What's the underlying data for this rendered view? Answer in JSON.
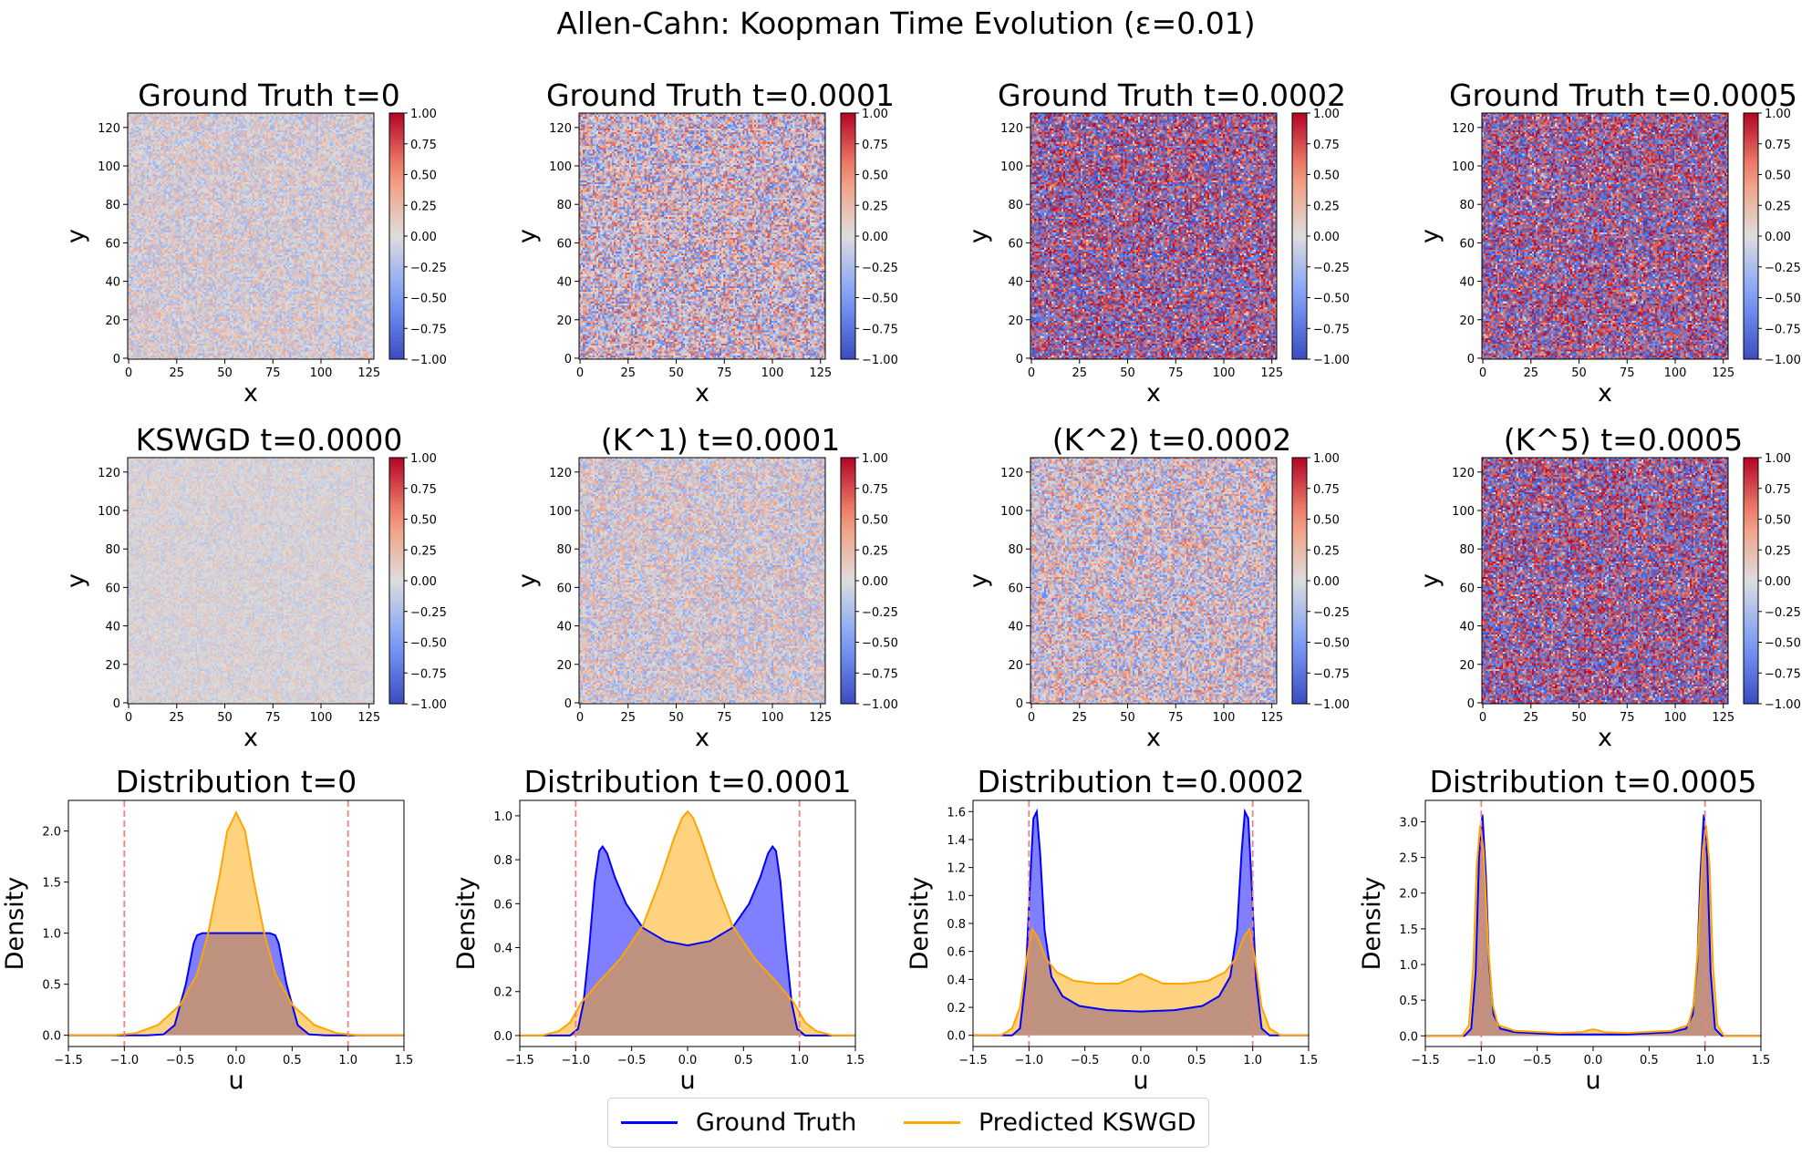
{
  "title": "Allen-Cahn: Koopman Time Evolution (ε=0.01)",
  "colors": {
    "ground_truth": "#0000ff",
    "predicted": "#ffa500",
    "ref_line": "#f08080",
    "cmap_low": "#3b4cc0",
    "cmap_mid": "#dddddd",
    "cmap_high": "#b40426"
  },
  "colorbar_ticks": [
    "1.00",
    "0.75",
    "0.50",
    "0.25",
    "0.00",
    "−0.25",
    "−0.50",
    "−0.75",
    "−1.00"
  ],
  "legend": {
    "items": [
      {
        "label": "Ground Truth",
        "color": "#0000ff"
      },
      {
        "label": "Predicted KSWGD",
        "color": "#ffa500"
      }
    ]
  },
  "chart_data": [
    {
      "type": "heatmap",
      "title": "Ground Truth t=0",
      "xlabel": "x",
      "ylabel": "y",
      "xticks": [
        0,
        25,
        50,
        75,
        100,
        125
      ],
      "yticks": [
        0,
        20,
        40,
        60,
        80,
        100,
        120
      ],
      "vmin": -1,
      "vmax": 1,
      "grid_size": 128,
      "amplitude": 0.35
    },
    {
      "type": "heatmap",
      "title": "Ground Truth t=0.0001",
      "xlabel": "x",
      "ylabel": "y",
      "xticks": [
        0,
        25,
        50,
        75,
        100,
        125
      ],
      "yticks": [
        0,
        20,
        40,
        60,
        80,
        100,
        120
      ],
      "vmin": -1,
      "vmax": 1,
      "grid_size": 128,
      "amplitude": 0.75
    },
    {
      "type": "heatmap",
      "title": "Ground Truth t=0.0002",
      "xlabel": "x",
      "ylabel": "y",
      "xticks": [
        0,
        25,
        50,
        75,
        100,
        125
      ],
      "yticks": [
        0,
        20,
        40,
        60,
        80,
        100,
        120
      ],
      "vmin": -1,
      "vmax": 1,
      "grid_size": 128,
      "amplitude": 1.0
    },
    {
      "type": "heatmap",
      "title": "Ground Truth t=0.0005",
      "xlabel": "x",
      "ylabel": "y",
      "xticks": [
        0,
        25,
        50,
        75,
        100,
        125
      ],
      "yticks": [
        0,
        20,
        40,
        60,
        80,
        100,
        120
      ],
      "vmin": -1,
      "vmax": 1,
      "grid_size": 128,
      "amplitude": 1.0
    },
    {
      "type": "heatmap",
      "title": "KSWGD t=0.0000",
      "xlabel": "x",
      "ylabel": "y",
      "xticks": [
        0,
        25,
        50,
        75,
        100,
        125
      ],
      "yticks": [
        0,
        20,
        40,
        60,
        80,
        100,
        120
      ],
      "vmin": -1,
      "vmax": 1,
      "grid_size": 128,
      "amplitude": 0.2
    },
    {
      "type": "heatmap",
      "title": "(K^1) t=0.0001",
      "xlabel": "x",
      "ylabel": "y",
      "xticks": [
        0,
        25,
        50,
        75,
        100,
        125
      ],
      "yticks": [
        0,
        20,
        40,
        60,
        80,
        100,
        120
      ],
      "vmin": -1,
      "vmax": 1,
      "grid_size": 128,
      "amplitude": 0.45
    },
    {
      "type": "heatmap",
      "title": "(K^2) t=0.0002",
      "xlabel": "x",
      "ylabel": "y",
      "xticks": [
        0,
        25,
        50,
        75,
        100,
        125
      ],
      "yticks": [
        0,
        20,
        40,
        60,
        80,
        100,
        120
      ],
      "vmin": -1,
      "vmax": 1,
      "grid_size": 128,
      "amplitude": 0.65
    },
    {
      "type": "heatmap",
      "title": "(K^5) t=0.0005",
      "xlabel": "x",
      "ylabel": "y",
      "xticks": [
        0,
        25,
        50,
        75,
        100,
        125
      ],
      "yticks": [
        0,
        20,
        40,
        60,
        80,
        100,
        120
      ],
      "vmin": -1,
      "vmax": 1,
      "grid_size": 128,
      "amplitude": 1.0
    },
    {
      "type": "area",
      "title": "Distribution t=0",
      "xlabel": "u",
      "ylabel": "Density",
      "xlim": [
        -1.5,
        1.5
      ],
      "ylim": [
        -0.11,
        2.3
      ],
      "xticks": [
        "−1.5",
        "−1.0",
        "−0.5",
        "0.0",
        "0.5",
        "1.0",
        "1.5"
      ],
      "yticks": [
        "0.0",
        "0.5",
        "1.0",
        "1.5",
        "2.0"
      ],
      "ref_lines": [
        -1,
        1
      ],
      "series": [
        {
          "name": "Ground Truth",
          "x": [
            -1.5,
            -0.8,
            -0.65,
            -0.55,
            -0.45,
            -0.38,
            -0.35,
            -0.3,
            0,
            0.3,
            0.35,
            0.38,
            0.45,
            0.55,
            0.65,
            0.8,
            1.5
          ],
          "y": [
            0,
            0,
            0.01,
            0.1,
            0.5,
            0.9,
            0.98,
            1.0,
            1.0,
            1.0,
            0.98,
            0.9,
            0.5,
            0.1,
            0.01,
            0,
            0
          ]
        },
        {
          "name": "Predicted KSWGD",
          "x": [
            -1.5,
            -1.1,
            -0.9,
            -0.7,
            -0.5,
            -0.35,
            -0.25,
            -0.15,
            -0.08,
            0,
            0.08,
            0.15,
            0.25,
            0.35,
            0.5,
            0.7,
            0.9,
            1.1,
            1.5
          ],
          "y": [
            0,
            0,
            0.02,
            0.1,
            0.3,
            0.6,
            1.0,
            1.55,
            2.0,
            2.18,
            2.0,
            1.55,
            1.0,
            0.6,
            0.3,
            0.1,
            0.02,
            0,
            0
          ]
        }
      ]
    },
    {
      "type": "area",
      "title": "Distribution t=0.0001",
      "xlabel": "u",
      "ylabel": "Density",
      "xlim": [
        -1.5,
        1.5
      ],
      "ylim": [
        -0.05,
        1.07
      ],
      "xticks": [
        "−1.5",
        "−1.0",
        "−0.5",
        "0.0",
        "0.5",
        "1.0",
        "1.5"
      ],
      "yticks": [
        "0.0",
        "0.2",
        "0.4",
        "0.6",
        "0.8",
        "1.0"
      ],
      "ref_lines": [
        -1,
        1
      ],
      "series": [
        {
          "name": "Ground Truth",
          "x": [
            -1.5,
            -1.05,
            -0.98,
            -0.93,
            -0.88,
            -0.83,
            -0.79,
            -0.76,
            -0.72,
            -0.65,
            -0.55,
            -0.4,
            -0.2,
            0,
            0.2,
            0.4,
            0.55,
            0.65,
            0.72,
            0.76,
            0.79,
            0.83,
            0.88,
            0.93,
            0.98,
            1.05,
            1.5
          ],
          "y": [
            0,
            0,
            0.03,
            0.15,
            0.4,
            0.7,
            0.84,
            0.86,
            0.83,
            0.72,
            0.6,
            0.49,
            0.43,
            0.41,
            0.43,
            0.49,
            0.6,
            0.72,
            0.83,
            0.86,
            0.84,
            0.7,
            0.4,
            0.15,
            0.03,
            0,
            0
          ]
        },
        {
          "name": "Predicted KSWGD",
          "x": [
            -1.5,
            -1.3,
            -1.15,
            -1.05,
            -0.95,
            -0.8,
            -0.6,
            -0.4,
            -0.25,
            -0.12,
            -0.05,
            0,
            0.05,
            0.12,
            0.25,
            0.4,
            0.6,
            0.8,
            0.95,
            1.05,
            1.15,
            1.3,
            1.5
          ],
          "y": [
            0,
            0,
            0.02,
            0.06,
            0.15,
            0.24,
            0.35,
            0.5,
            0.7,
            0.9,
            0.99,
            1.02,
            0.99,
            0.9,
            0.7,
            0.5,
            0.35,
            0.24,
            0.15,
            0.06,
            0.02,
            0,
            0
          ]
        }
      ]
    },
    {
      "type": "area",
      "title": "Distribution t=0.0002",
      "xlabel": "u",
      "ylabel": "Density",
      "xlim": [
        -1.5,
        1.5
      ],
      "ylim": [
        -0.08,
        1.68
      ],
      "xticks": [
        "−1.5",
        "−1.0",
        "−0.5",
        "0.0",
        "0.5",
        "1.0",
        "1.5"
      ],
      "yticks": [
        "0.0",
        "0.2",
        "0.4",
        "0.6",
        "0.8",
        "1.0",
        "1.2",
        "1.4",
        "1.6"
      ],
      "ref_lines": [
        -1,
        1
      ],
      "series": [
        {
          "name": "Ground Truth",
          "x": [
            -1.5,
            -1.15,
            -1.08,
            -1.03,
            -0.99,
            -0.96,
            -0.93,
            -0.9,
            -0.86,
            -0.8,
            -0.7,
            -0.55,
            -0.3,
            0,
            0.3,
            0.55,
            0.7,
            0.8,
            0.86,
            0.9,
            0.93,
            0.96,
            0.99,
            1.03,
            1.08,
            1.15,
            1.5
          ],
          "y": [
            0,
            0,
            0.05,
            0.4,
            1.1,
            1.55,
            1.6,
            1.3,
            0.75,
            0.42,
            0.28,
            0.21,
            0.18,
            0.17,
            0.18,
            0.21,
            0.28,
            0.42,
            0.75,
            1.3,
            1.6,
            1.55,
            1.1,
            0.4,
            0.05,
            0,
            0
          ]
        },
        {
          "name": "Predicted KSWGD",
          "x": [
            -1.5,
            -1.25,
            -1.15,
            -1.08,
            -1.02,
            -0.97,
            -0.92,
            -0.85,
            -0.75,
            -0.6,
            -0.4,
            -0.2,
            -0.08,
            0,
            0.08,
            0.2,
            0.4,
            0.6,
            0.75,
            0.85,
            0.92,
            0.97,
            1.02,
            1.08,
            1.15,
            1.25,
            1.5
          ],
          "y": [
            0,
            0,
            0.05,
            0.2,
            0.55,
            0.76,
            0.7,
            0.55,
            0.45,
            0.39,
            0.37,
            0.37,
            0.41,
            0.44,
            0.41,
            0.37,
            0.37,
            0.39,
            0.45,
            0.55,
            0.7,
            0.76,
            0.55,
            0.2,
            0.05,
            0,
            0
          ]
        }
      ]
    },
    {
      "type": "area",
      "title": "Distribution t=0.0005",
      "xlabel": "u",
      "ylabel": "Density",
      "xlim": [
        -1.5,
        1.5
      ],
      "ylim": [
        -0.15,
        3.3
      ],
      "xticks": [
        "−1.5",
        "−1.0",
        "−0.5",
        "0.0",
        "0.5",
        "1.0",
        "1.5"
      ],
      "yticks": [
        "0.0",
        "0.5",
        "1.0",
        "1.5",
        "2.0",
        "2.5",
        "3.0"
      ],
      "ref_lines": [
        -1,
        1
      ],
      "series": [
        {
          "name": "Ground Truth",
          "x": [
            -1.5,
            -1.15,
            -1.09,
            -1.05,
            -1.02,
            -0.99,
            -0.96,
            -0.93,
            -0.89,
            -0.83,
            -0.7,
            -0.3,
            0,
            0.3,
            0.7,
            0.83,
            0.89,
            0.93,
            0.96,
            0.99,
            1.02,
            1.05,
            1.09,
            1.15,
            1.5
          ],
          "y": [
            0,
            0,
            0.1,
            0.9,
            2.5,
            3.1,
            2.3,
            1.0,
            0.3,
            0.1,
            0.05,
            0.02,
            0.02,
            0.02,
            0.05,
            0.1,
            0.3,
            1.0,
            2.3,
            3.1,
            2.5,
            0.9,
            0.1,
            0,
            0
          ]
        },
        {
          "name": "Predicted KSWGD",
          "x": [
            -1.5,
            -1.17,
            -1.11,
            -1.07,
            -1.04,
            -1.01,
            -0.98,
            -0.94,
            -0.9,
            -0.85,
            -0.7,
            -0.3,
            -0.1,
            -0.04,
            0,
            0.04,
            0.1,
            0.3,
            0.7,
            0.85,
            0.9,
            0.94,
            0.98,
            1.01,
            1.04,
            1.07,
            1.11,
            1.17,
            1.5
          ],
          "y": [
            0,
            0,
            0.15,
            1.0,
            2.4,
            2.95,
            2.6,
            1.3,
            0.45,
            0.15,
            0.07,
            0.04,
            0.05,
            0.08,
            0.09,
            0.08,
            0.05,
            0.04,
            0.07,
            0.15,
            0.45,
            1.3,
            2.6,
            2.95,
            2.4,
            1.0,
            0.15,
            0,
            0
          ]
        }
      ]
    }
  ]
}
